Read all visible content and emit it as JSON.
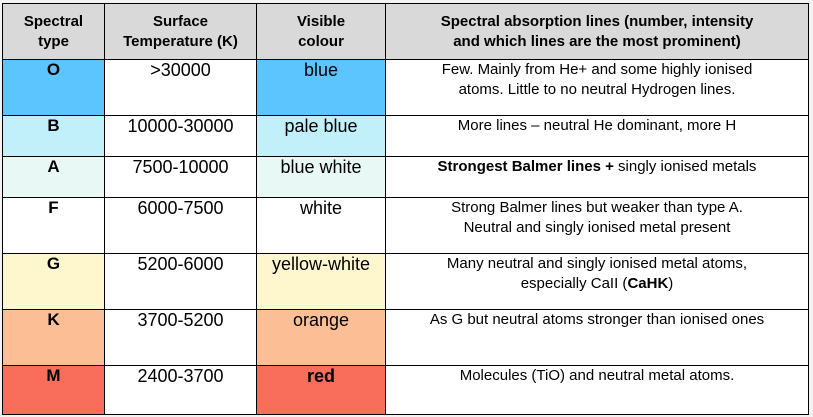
{
  "headers": {
    "type": [
      "Spectral",
      "type"
    ],
    "temperature": [
      "Surface",
      "Temperature (K)"
    ],
    "colour": [
      "Visible",
      "colour"
    ],
    "lines": [
      "Spectral absorption lines (number, intensity",
      "and which lines are the most prominent)"
    ]
  },
  "rows": [
    {
      "type": "O",
      "temperature": ">30000",
      "colour": "blue",
      "lines": [
        "Few. Mainly from He+ and some highly ionised",
        "atoms. Little to no neutral Hydrogen lines."
      ],
      "bg": "#5cc5fd"
    },
    {
      "type": "B",
      "temperature": "10000-30000",
      "colour": "pale blue",
      "lines": [
        "More lines – neutral He dominant, more H"
      ],
      "bg": "#c1f0fa"
    },
    {
      "type": "A",
      "temperature": "7500-10000",
      "colour": "blue white",
      "lines_bold": "Strongest Balmer lines +",
      "lines_rest": " singly ionised metals",
      "bg": "#e8f9f5"
    },
    {
      "type": "F",
      "temperature": "6000-7500",
      "colour": "white",
      "lines": [
        "Strong Balmer lines but weaker than type A.",
        "Neutral and singly ionised metal present"
      ],
      "bg": "#ffffff"
    },
    {
      "type": "G",
      "temperature": "5200-6000",
      "colour": "yellow-white",
      "lines_first": "Many neutral and singly ionised metal atoms,",
      "lines_pre": "especially CaII (",
      "lines_bold": "CaHK",
      "lines_post": ")",
      "bg": "#fef6cd"
    },
    {
      "type": "K",
      "temperature": "3700-5200",
      "colour": "orange",
      "lines": [
        "As G but neutral atoms stronger than ionised ones"
      ],
      "bg": "#fcbe94"
    },
    {
      "type": "M",
      "temperature": "2400-3700",
      "colour": "red",
      "colour_bold": true,
      "lines": [
        "Molecules (TiO) and neutral metal atoms."
      ],
      "bg": "#f96e5a"
    }
  ]
}
